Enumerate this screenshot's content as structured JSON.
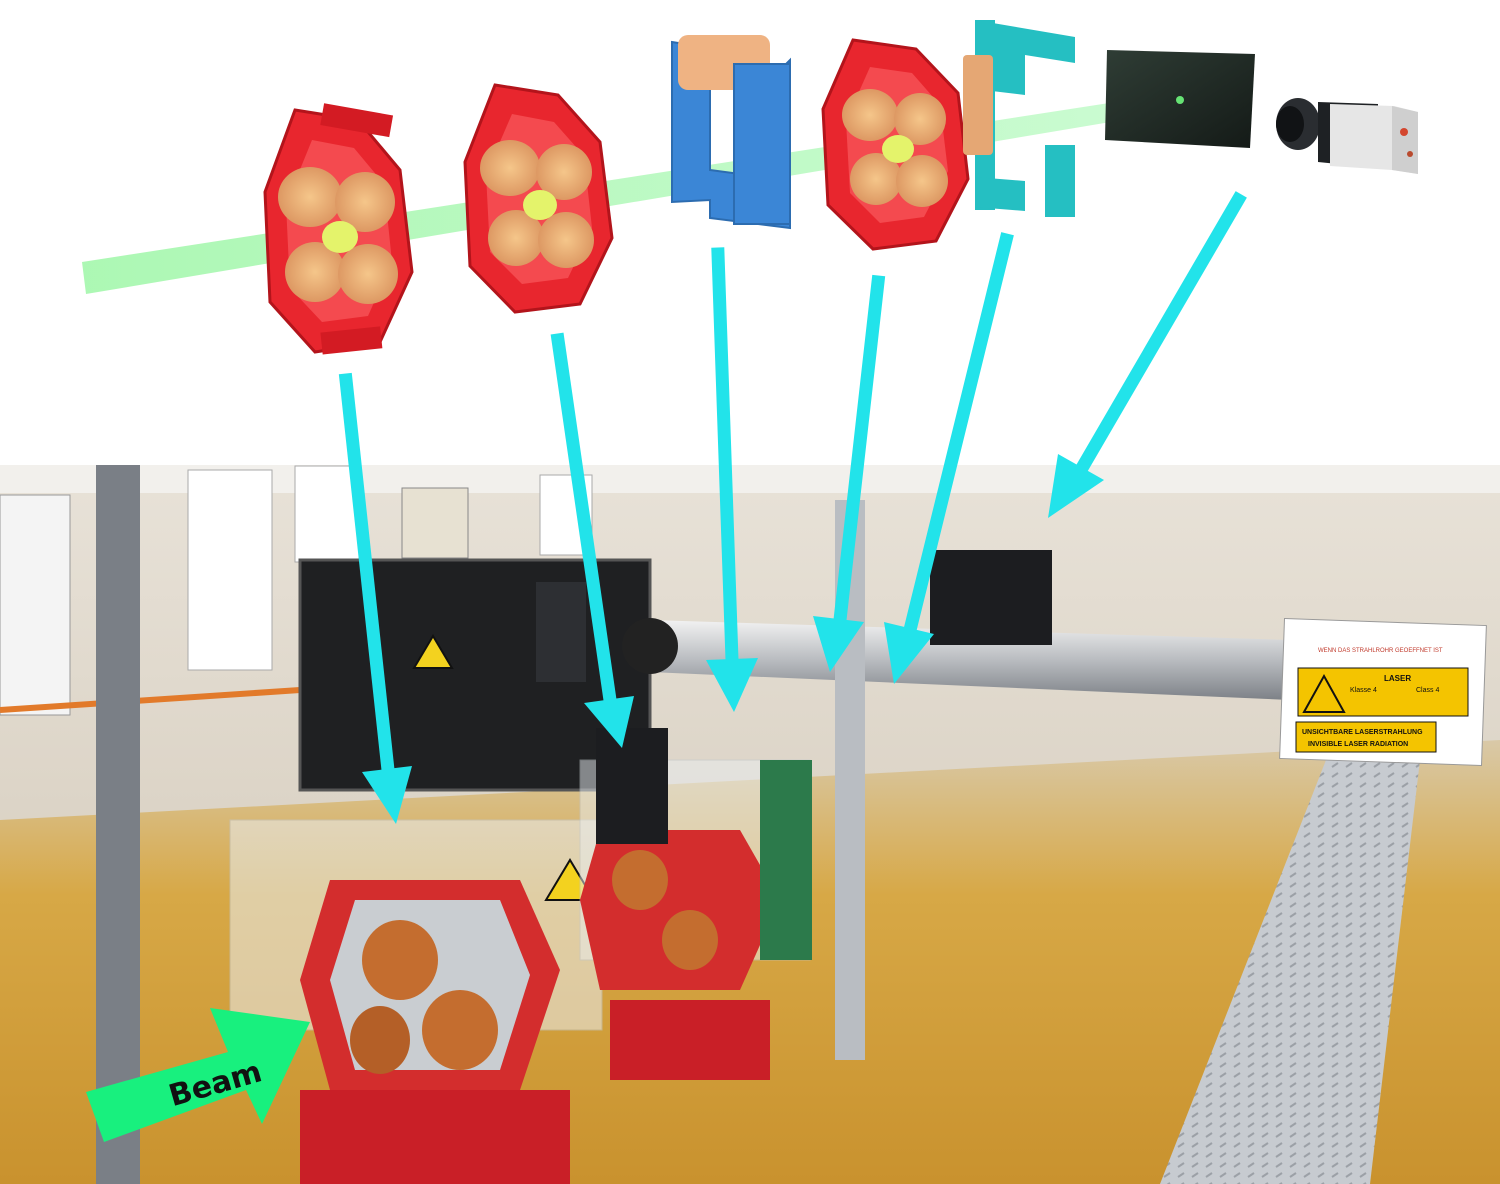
{
  "colors": {
    "arrow": "#22e3ea",
    "beam_arrow": "#18f07e",
    "laser_beam": "#a8f7b0",
    "quadrupole": "#e8262e",
    "coil": "#efb383",
    "corrector": "#3b86d6",
    "corrector_teal": "#25bfc2",
    "screen": "#1d2a24",
    "camera_body": "#e6e6e6",
    "floor": "#e8b646"
  },
  "components": [
    {
      "name": "quadrupole-magnet-1",
      "icon": "quadrupole-icon"
    },
    {
      "name": "quadrupole-magnet-2",
      "icon": "quadrupole-icon"
    },
    {
      "name": "steering-magnet-1",
      "icon": "corrector-icon"
    },
    {
      "name": "quadrupole-magnet-3",
      "icon": "quadrupole-icon"
    },
    {
      "name": "steering-magnet-2",
      "icon": "corrector-icon"
    },
    {
      "name": "camera",
      "icon": "camera-icon"
    }
  ],
  "photo": {
    "beam_label": "Beam",
    "warning_sign": {
      "line1": "LASER",
      "line2a": "Klasse 4",
      "line2b": "Class 4",
      "line3": "UNSICHTBARE LASERSTRAHLUNG",
      "line4": "INVISIBLE LASER RADIATION"
    }
  }
}
